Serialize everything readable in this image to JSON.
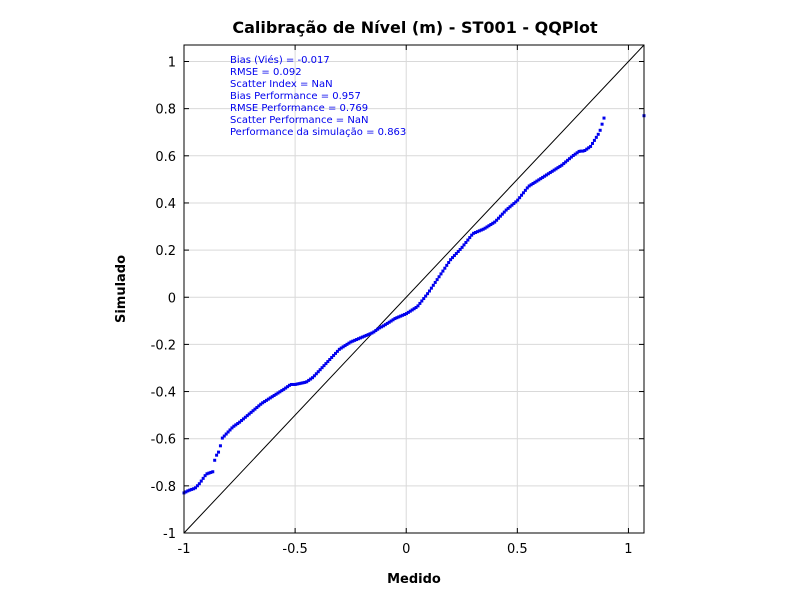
{
  "chart_data": {
    "type": "scatter",
    "title": "Calibração de Nível (m) - ST001 - QQPlot",
    "xlabel": "Medido",
    "ylabel": "Simulado",
    "xlim": [
      -1,
      1.07
    ],
    "ylim": [
      -1,
      1.07
    ],
    "grid": true,
    "xticks": [
      -1,
      -0.5,
      0,
      0.5,
      1
    ],
    "xtick_labels": [
      "-1",
      "-0.5",
      "0",
      "0.5",
      "1"
    ],
    "yticks": [
      -1,
      -0.8,
      -0.6,
      -0.4,
      -0.2,
      0,
      0.2,
      0.4,
      0.6,
      0.8,
      1
    ],
    "ytick_labels": [
      "-1",
      "-0.8",
      "-0.6",
      "-0.4",
      "-0.2",
      "0",
      "0.2",
      "0.4",
      "0.6",
      "0.8",
      "1"
    ],
    "reference_line": {
      "from": [
        -1,
        -1
      ],
      "to": [
        1.07,
        1.07
      ],
      "color": "#000000"
    },
    "colors": {
      "points": "#0000ee",
      "stats_text": "#0000ee"
    },
    "annotations": [
      "Bias (Viés) = -0.017",
      "RMSE = 0.092",
      "Scatter Index = NaN",
      "Bias Performance = 0.957",
      "RMSE Performance = 0.769",
      "Scatter Performance = NaN",
      "Performance da simulação = 0.863"
    ],
    "quantile_curve": {
      "x": [
        -1.0,
        -0.98,
        -0.95,
        -0.93,
        -0.9,
        -0.87,
        -0.86,
        -0.84,
        -0.83,
        -0.8,
        -0.78,
        -0.75,
        -0.7,
        -0.65,
        -0.6,
        -0.55,
        -0.52,
        -0.5,
        -0.45,
        -0.42,
        -0.38,
        -0.35,
        -0.3,
        -0.25,
        -0.2,
        -0.15,
        -0.12,
        -0.1,
        -0.05,
        0.0,
        0.05,
        0.1,
        0.15,
        0.2,
        0.25,
        0.3,
        0.35,
        0.4,
        0.45,
        0.5,
        0.55,
        0.6,
        0.65,
        0.7,
        0.75,
        0.78,
        0.8,
        0.83,
        0.85,
        0.87,
        0.88,
        0.89
      ],
      "y": [
        -0.83,
        -0.82,
        -0.81,
        -0.79,
        -0.75,
        -0.74,
        -0.68,
        -0.65,
        -0.6,
        -0.57,
        -0.55,
        -0.53,
        -0.49,
        -0.45,
        -0.42,
        -0.39,
        -0.37,
        -0.37,
        -0.36,
        -0.34,
        -0.3,
        -0.27,
        -0.22,
        -0.19,
        -0.17,
        -0.15,
        -0.13,
        -0.12,
        -0.09,
        -0.07,
        -0.04,
        0.02,
        0.09,
        0.16,
        0.21,
        0.27,
        0.29,
        0.32,
        0.37,
        0.41,
        0.47,
        0.5,
        0.53,
        0.56,
        0.6,
        0.62,
        0.62,
        0.64,
        0.67,
        0.7,
        0.73,
        0.76
      ],
      "sample_points": 220
    },
    "outlier": {
      "x": 1.07,
      "y": 0.77
    }
  }
}
